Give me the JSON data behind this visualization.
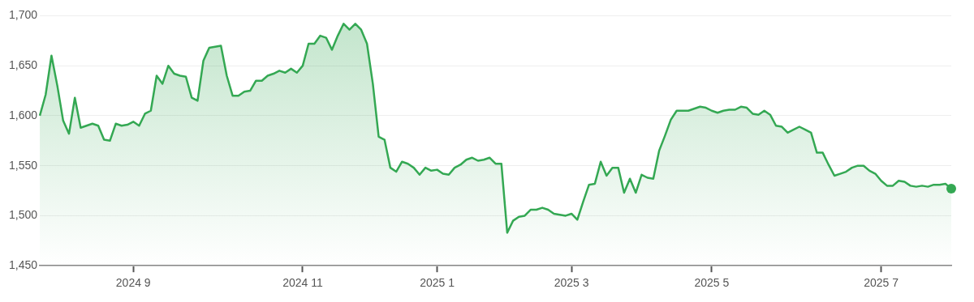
{
  "chart_data": {
    "type": "area",
    "categories": [
      null,
      null,
      null,
      null,
      null,
      null,
      null,
      null,
      null,
      null,
      null,
      null,
      null,
      null,
      null,
      null,
      "2024 9",
      null,
      null,
      null,
      null,
      null,
      null,
      null,
      null,
      null,
      null,
      null,
      null,
      null,
      null,
      null,
      null,
      null,
      null,
      null,
      null,
      null,
      null,
      null,
      null,
      null,
      null,
      null,
      null,
      "2024 11",
      null,
      null,
      null,
      null,
      null,
      null,
      null,
      null,
      null,
      null,
      null,
      null,
      null,
      null,
      null,
      null,
      null,
      null,
      null,
      null,
      null,
      null,
      "2025 1",
      null,
      null,
      null,
      null,
      null,
      null,
      null,
      null,
      null,
      null,
      null,
      null,
      null,
      null,
      null,
      null,
      null,
      null,
      null,
      null,
      null,
      null,
      "2025 3",
      null,
      null,
      null,
      null,
      null,
      null,
      null,
      null,
      null,
      null,
      null,
      null,
      null,
      null,
      null,
      null,
      null,
      null,
      null,
      null,
      null,
      null,
      null,
      "2025 5",
      null,
      null,
      null,
      null,
      null,
      null,
      null,
      null,
      null,
      null,
      null,
      null,
      null,
      null,
      null,
      null,
      null,
      null,
      null,
      null,
      null,
      null,
      null,
      null,
      null,
      null,
      null,
      null,
      "2025 7",
      null,
      null,
      null,
      null,
      null,
      null,
      null,
      null,
      null,
      null,
      null,
      null
    ],
    "series": [
      {
        "color": "#34a853",
        "values": [
          1600,
          1621,
          1660,
          1630,
          1595,
          1582,
          1618,
          1588,
          1590,
          1592,
          1590,
          1576,
          1575,
          1592,
          1590,
          1591,
          1594,
          1590,
          1602,
          1605,
          1640,
          1632,
          1650,
          1642,
          1640,
          1639,
          1618,
          1615,
          1655,
          1668,
          1669,
          1670,
          1640,
          1620,
          1620,
          1624,
          1625,
          1635,
          1635,
          1640,
          1642,
          1645,
          1643,
          1647,
          1643,
          1650,
          1672,
          1672,
          1680,
          1678,
          1666,
          1680,
          1692,
          1686,
          1692,
          1686,
          1672,
          1632,
          1579,
          1576,
          1548,
          1544,
          1554,
          1552,
          1548,
          1541,
          1548,
          1545,
          1546,
          1542,
          1541,
          1548,
          1551,
          1556,
          1558,
          1555,
          1556,
          1558,
          1552,
          1552,
          1483,
          1495,
          1499,
          1500,
          1506,
          1506,
          1508,
          1506,
          1502,
          1501,
          1500,
          1502,
          1496,
          1514,
          1531,
          1532,
          1554,
          1540,
          1548,
          1548,
          1523,
          1537,
          1523,
          1541,
          1538,
          1537,
          1565,
          1580,
          1596,
          1605,
          1605,
          1605,
          1607,
          1609,
          1608,
          1605,
          1603,
          1605,
          1606,
          1606,
          1609,
          1608,
          1602,
          1601,
          1605,
          1601,
          1590,
          1589,
          1583,
          1586,
          1589,
          1586,
          1583,
          1563,
          1563,
          1551,
          1540,
          1542,
          1544,
          1548,
          1550,
          1550,
          1545,
          1542,
          1535,
          1530,
          1530,
          1535,
          1534,
          1530,
          1529,
          1530,
          1529,
          1531,
          1531,
          1532,
          1527
        ]
      }
    ],
    "ylim": [
      1450,
      1700
    ],
    "yticks": [
      {
        "value": 1450,
        "label": "1,450"
      },
      {
        "value": 1500,
        "label": "1,500"
      },
      {
        "value": 1550,
        "label": "1,550"
      },
      {
        "value": 1600,
        "label": "1,600"
      },
      {
        "value": 1650,
        "label": "1,650"
      },
      {
        "value": 1700,
        "label": "1,700"
      }
    ],
    "grid": "y",
    "legend": false
  }
}
